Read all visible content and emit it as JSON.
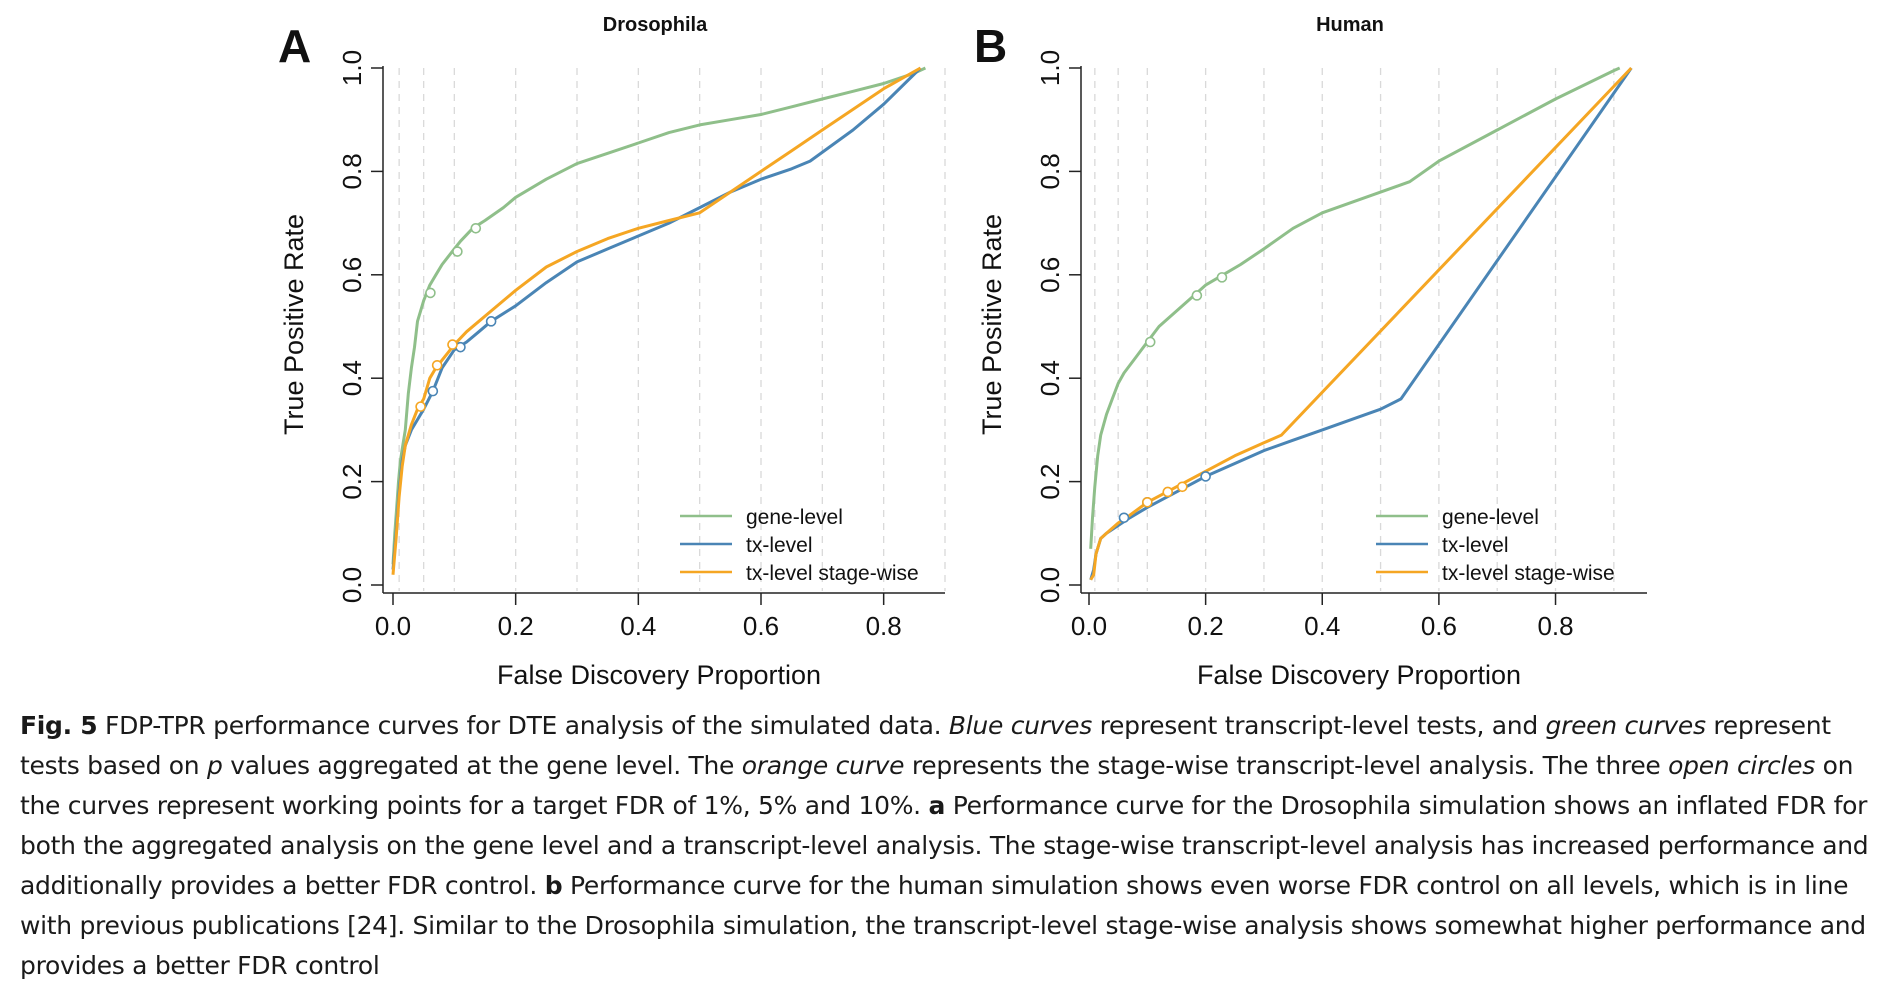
{
  "chart_data": [
    {
      "type": "line",
      "panel_letter": "A",
      "title": "Drosophila",
      "xlabel": "False Discovery Proportion",
      "ylabel": "True Positive Rate",
      "xlim": [
        0,
        0.9
      ],
      "ylim": [
        0,
        1.0
      ],
      "xticks": [
        "0.0",
        "0.2",
        "0.4",
        "0.6",
        "0.8"
      ],
      "yticks": [
        "0.0",
        "0.2",
        "0.4",
        "0.6",
        "0.8",
        "1.0"
      ],
      "vgrid": [
        0.01,
        0.05,
        0.1,
        0.2,
        0.3,
        0.4,
        0.5,
        0.6,
        0.7,
        0.8,
        0.9
      ],
      "grid": "vertical dashed",
      "legend_position": "bottom-right",
      "series": [
        {
          "name": "gene-level",
          "color": "#8fbf8a",
          "x": [
            0,
            0.003,
            0.006,
            0.009,
            0.012,
            0.016,
            0.02,
            0.025,
            0.03,
            0.035,
            0.04,
            0.05,
            0.06,
            0.07,
            0.08,
            0.09,
            0.1,
            0.11,
            0.13,
            0.15,
            0.18,
            0.2,
            0.25,
            0.3,
            0.35,
            0.4,
            0.45,
            0.5,
            0.55,
            0.6,
            0.65,
            0.7,
            0.75,
            0.8,
            0.85,
            0.868
          ],
          "y": [
            0.04,
            0.1,
            0.15,
            0.2,
            0.24,
            0.27,
            0.3,
            0.37,
            0.42,
            0.46,
            0.51,
            0.55,
            0.58,
            0.6,
            0.62,
            0.635,
            0.65,
            0.665,
            0.69,
            0.705,
            0.73,
            0.75,
            0.785,
            0.815,
            0.835,
            0.855,
            0.875,
            0.89,
            0.9,
            0.91,
            0.925,
            0.94,
            0.955,
            0.97,
            0.99,
            1.0
          ]
        },
        {
          "name": "tx-level",
          "color": "#4a85b5",
          "x": [
            0,
            0.005,
            0.01,
            0.015,
            0.02,
            0.03,
            0.04,
            0.05,
            0.065,
            0.08,
            0.1,
            0.12,
            0.14,
            0.16,
            0.2,
            0.25,
            0.3,
            0.35,
            0.4,
            0.45,
            0.5,
            0.55,
            0.6,
            0.65,
            0.68,
            0.75,
            0.8,
            0.86
          ],
          "y": [
            0.03,
            0.1,
            0.18,
            0.24,
            0.27,
            0.3,
            0.32,
            0.34,
            0.375,
            0.42,
            0.455,
            0.47,
            0.49,
            0.51,
            0.54,
            0.585,
            0.625,
            0.65,
            0.675,
            0.7,
            0.73,
            0.76,
            0.785,
            0.805,
            0.82,
            0.88,
            0.93,
            1.0
          ]
        },
        {
          "name": "tx-level stage-wise",
          "color": "#f5a623",
          "x": [
            0,
            0.005,
            0.01,
            0.015,
            0.02,
            0.03,
            0.04,
            0.05,
            0.06,
            0.07,
            0.08,
            0.09,
            0.1,
            0.12,
            0.14,
            0.16,
            0.2,
            0.25,
            0.3,
            0.35,
            0.4,
            0.45,
            0.5,
            0.55,
            0.6,
            0.65,
            0.7,
            0.75,
            0.8,
            0.86
          ],
          "y": [
            0.02,
            0.09,
            0.17,
            0.23,
            0.27,
            0.31,
            0.34,
            0.36,
            0.4,
            0.42,
            0.435,
            0.45,
            0.465,
            0.49,
            0.51,
            0.53,
            0.57,
            0.615,
            0.645,
            0.67,
            0.69,
            0.705,
            0.72,
            0.76,
            0.8,
            0.84,
            0.88,
            0.92,
            0.96,
            1.0
          ]
        }
      ],
      "working_points": [
        {
          "series": 0,
          "x": [
            0.061,
            0.105,
            0.135
          ],
          "y": [
            0.565,
            0.645,
            0.69
          ]
        },
        {
          "series": 1,
          "x": [
            0.065,
            0.11,
            0.16
          ],
          "y": [
            0.375,
            0.46,
            0.51
          ]
        },
        {
          "series": 2,
          "x": [
            0.045,
            0.072,
            0.097
          ],
          "y": [
            0.345,
            0.425,
            0.465
          ]
        }
      ]
    },
    {
      "type": "line",
      "panel_letter": "B",
      "title": "Human",
      "xlabel": "False Discovery Proportion",
      "ylabel": "True Positive Rate",
      "xlim": [
        0,
        0.95
      ],
      "ylim": [
        0,
        1.0
      ],
      "xticks": [
        "0.0",
        "0.2",
        "0.4",
        "0.6",
        "0.8"
      ],
      "yticks": [
        "0.0",
        "0.2",
        "0.4",
        "0.6",
        "0.8",
        "1.0"
      ],
      "vgrid": [
        0.01,
        0.05,
        0.1,
        0.2,
        0.3,
        0.4,
        0.5,
        0.6,
        0.7,
        0.8,
        0.9
      ],
      "grid": "vertical dashed",
      "legend_position": "bottom-right",
      "series": [
        {
          "name": "gene-level",
          "color": "#8fbf8a",
          "x": [
            0.003,
            0.006,
            0.01,
            0.015,
            0.02,
            0.03,
            0.04,
            0.05,
            0.06,
            0.08,
            0.1,
            0.12,
            0.15,
            0.18,
            0.2,
            0.23,
            0.26,
            0.3,
            0.35,
            0.4,
            0.45,
            0.5,
            0.55,
            0.6,
            0.7,
            0.8,
            0.9,
            0.91
          ],
          "y": [
            0.07,
            0.13,
            0.19,
            0.25,
            0.29,
            0.33,
            0.36,
            0.39,
            0.41,
            0.44,
            0.47,
            0.5,
            0.53,
            0.56,
            0.58,
            0.6,
            0.62,
            0.65,
            0.69,
            0.72,
            0.74,
            0.76,
            0.78,
            0.82,
            0.88,
            0.94,
            0.995,
            1.0
          ]
        },
        {
          "name": "tx-level",
          "color": "#4a85b5",
          "x": [
            0.003,
            0.008,
            0.012,
            0.02,
            0.03,
            0.05,
            0.07,
            0.1,
            0.15,
            0.2,
            0.25,
            0.3,
            0.35,
            0.4,
            0.45,
            0.5,
            0.535,
            0.93
          ],
          "y": [
            0.01,
            0.03,
            0.06,
            0.09,
            0.1,
            0.115,
            0.13,
            0.15,
            0.18,
            0.21,
            0.235,
            0.26,
            0.28,
            0.3,
            0.32,
            0.34,
            0.36,
            1.0
          ]
        },
        {
          "name": "tx-level stage-wise",
          "color": "#f5a623",
          "x": [
            0.003,
            0.008,
            0.012,
            0.02,
            0.03,
            0.05,
            0.07,
            0.1,
            0.15,
            0.2,
            0.25,
            0.3,
            0.33,
            0.93
          ],
          "y": [
            0.01,
            0.02,
            0.06,
            0.09,
            0.1,
            0.12,
            0.135,
            0.16,
            0.19,
            0.22,
            0.25,
            0.275,
            0.29,
            1.0
          ]
        }
      ],
      "working_points": [
        {
          "series": 0,
          "x": [
            0.105,
            0.185,
            0.228
          ],
          "y": [
            0.47,
            0.56,
            0.595
          ]
        },
        {
          "series": 1,
          "x": [
            0.06,
            0.1,
            0.2
          ],
          "y": [
            0.13,
            0.16,
            0.21
          ]
        },
        {
          "series": 2,
          "x": [
            0.1,
            0.135,
            0.16
          ],
          "y": [
            0.16,
            0.18,
            0.19
          ]
        }
      ]
    }
  ],
  "caption": {
    "label": "Fig. 5",
    "segments": [
      {
        "t": " FDP-TPR performance curves for DTE analysis of the simulated data. "
      },
      {
        "t": "Blue curves",
        "i": true
      },
      {
        "t": " represent transcript-level tests, and "
      },
      {
        "t": "green curves",
        "i": true
      },
      {
        "t": " represent tests based on "
      },
      {
        "t": "p",
        "i": true
      },
      {
        "t": " values aggregated at the gene level. The "
      },
      {
        "t": "orange curve",
        "i": true
      },
      {
        "t": " represents the stage-wise transcript-level analysis. The three "
      },
      {
        "t": "open circles",
        "i": true
      },
      {
        "t": " on the curves represent working points for a target FDR of 1%, 5% and 10%. "
      },
      {
        "t": "a",
        "b": true
      },
      {
        "t": " Performance curve for the Drosophila simulation shows an inflated FDR for both the aggregated analysis on the gene level and a transcript-level analysis. The stage-wise transcript-level analysis has increased performance and additionally provides a better FDR control. "
      },
      {
        "t": "b",
        "b": true
      },
      {
        "t": " Performance curve for the human simulation shows even worse FDR control on all levels, which is in line with previous publications [24]. Similar to the Drosophila simulation, the transcript-level stage-wise analysis shows somewhat higher performance and provides a better FDR control"
      }
    ]
  }
}
